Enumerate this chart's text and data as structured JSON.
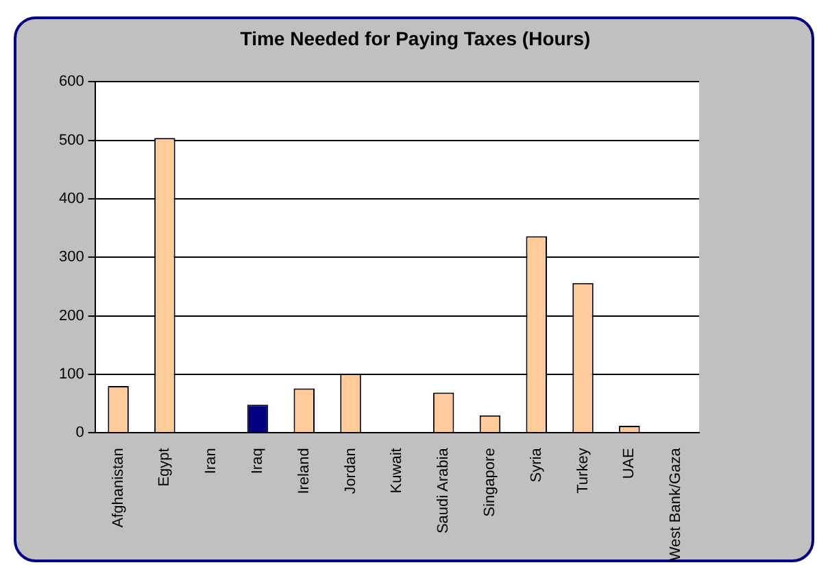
{
  "chart_data": {
    "type": "bar",
    "title": "Time Needed for Paying Taxes (Hours)",
    "categories": [
      "Afghanistan",
      "Egypt",
      "Iran",
      "Iraq",
      "Ireland",
      "Jordan",
      "Kuwait",
      "Saudi Arabia",
      "Singapore",
      "Syria",
      "Turkey",
      "UAE",
      "West Bank/Gaza"
    ],
    "values": [
      80,
      504,
      0,
      48,
      76,
      101,
      0,
      69,
      30,
      336,
      256,
      12,
      0
    ],
    "colors": [
      "#ffcc99",
      "#ffcc99",
      "#ffcc99",
      "#000080",
      "#ffcc99",
      "#ffcc99",
      "#ffcc99",
      "#ffcc99",
      "#ffcc99",
      "#ffcc99",
      "#ffcc99",
      "#ffcc99",
      "#ffcc99"
    ],
    "ylim": [
      0,
      600
    ],
    "yticks": [
      0,
      100,
      200,
      300,
      400,
      500,
      600
    ],
    "grid": "y",
    "legend": false
  }
}
